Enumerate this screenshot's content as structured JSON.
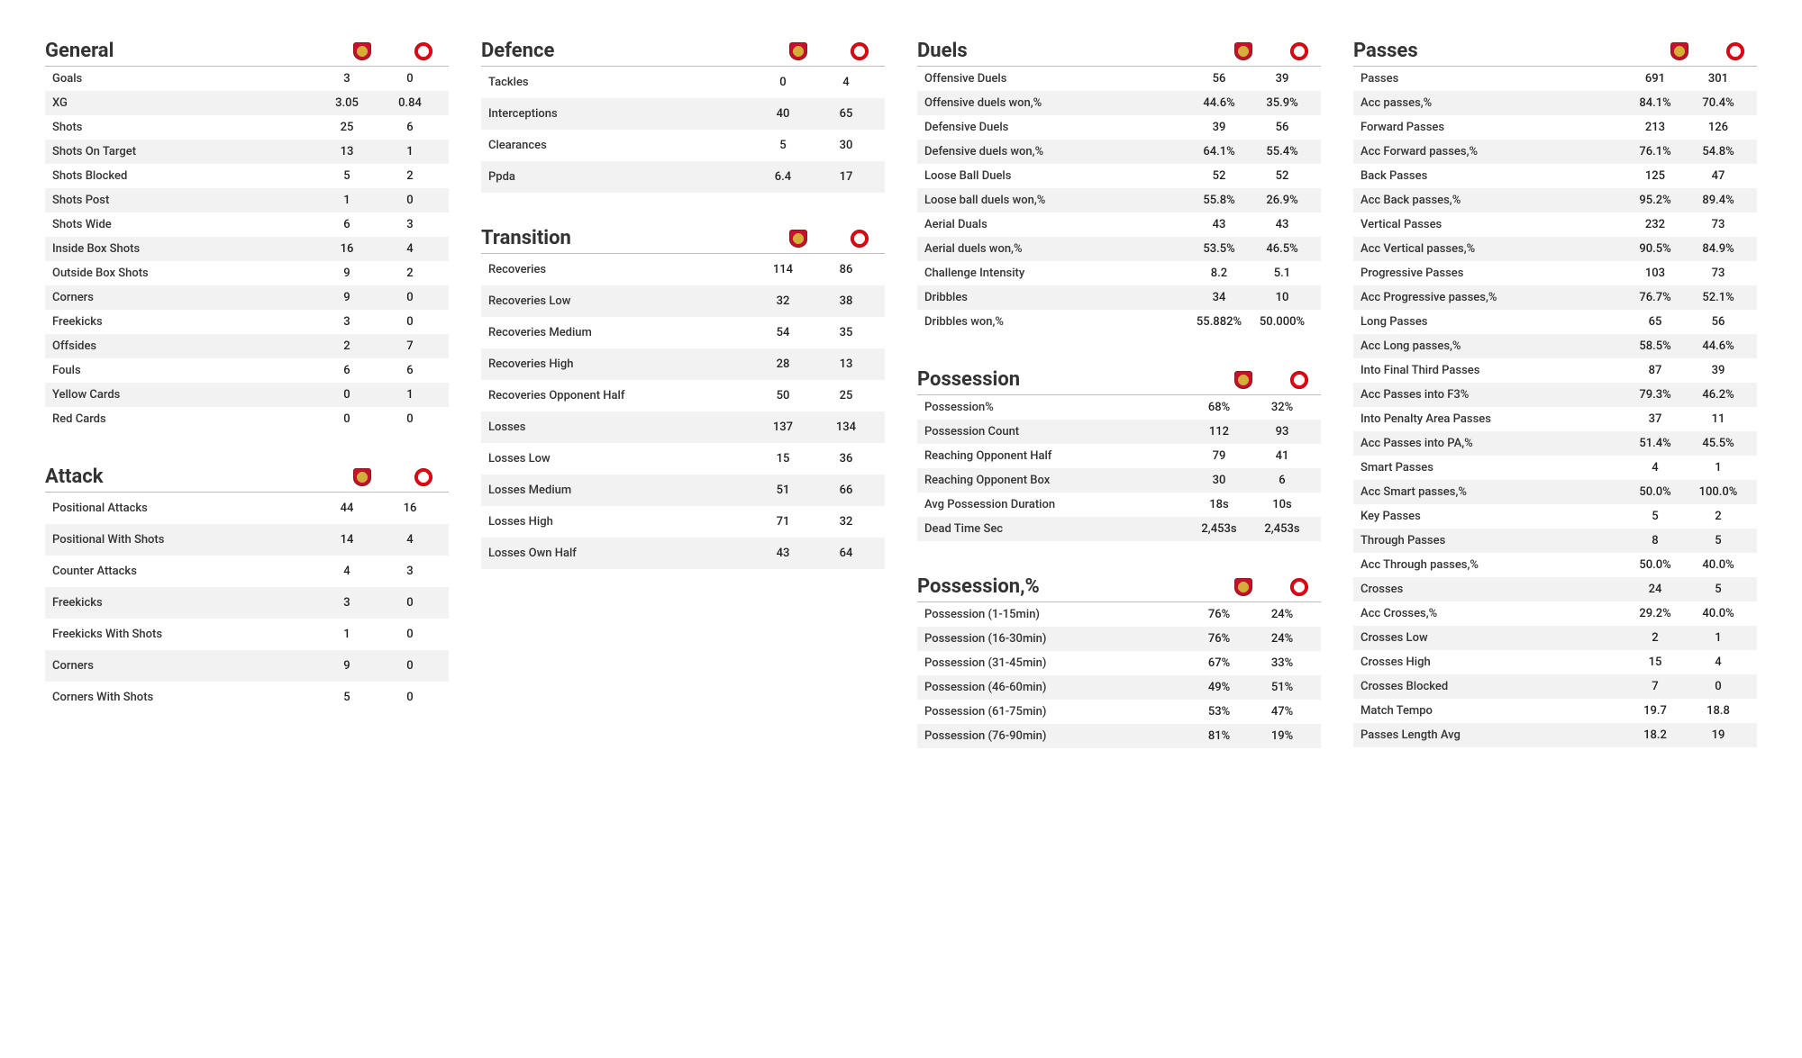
{
  "columns": [
    {
      "sections": [
        {
          "title": "General",
          "rows": [
            {
              "label": "Goals",
              "a": "3",
              "b": "0"
            },
            {
              "label": "XG",
              "a": "3.05",
              "b": "0.84"
            },
            {
              "label": "Shots",
              "a": "25",
              "b": "6"
            },
            {
              "label": "Shots On Target",
              "a": "13",
              "b": "1"
            },
            {
              "label": "Shots Blocked",
              "a": "5",
              "b": "2"
            },
            {
              "label": "Shots Post",
              "a": "1",
              "b": "0"
            },
            {
              "label": "Shots Wide",
              "a": "6",
              "b": "3"
            },
            {
              "label": "Inside Box Shots",
              "a": "16",
              "b": "4"
            },
            {
              "label": "Outside Box Shots",
              "a": "9",
              "b": "2"
            },
            {
              "label": "Corners",
              "a": "9",
              "b": "0"
            },
            {
              "label": "Freekicks",
              "a": "3",
              "b": "0"
            },
            {
              "label": "Offsides",
              "a": "2",
              "b": "7"
            },
            {
              "label": "Fouls",
              "a": "6",
              "b": "6"
            },
            {
              "label": "Yellow Cards",
              "a": "0",
              "b": "1"
            },
            {
              "label": "Red Cards",
              "a": "0",
              "b": "0"
            }
          ]
        },
        {
          "title": "Attack",
          "tall": true,
          "rows": [
            {
              "label": "Positional Attacks",
              "a": "44",
              "b": "16"
            },
            {
              "label": "Positional With Shots",
              "a": "14",
              "b": "4"
            },
            {
              "label": "Counter Attacks",
              "a": "4",
              "b": "3"
            },
            {
              "label": "Freekicks",
              "a": "3",
              "b": "0"
            },
            {
              "label": "Freekicks With Shots",
              "a": "1",
              "b": "0"
            },
            {
              "label": "Corners",
              "a": "9",
              "b": "0"
            },
            {
              "label": "Corners With Shots",
              "a": "5",
              "b": "0"
            }
          ]
        }
      ]
    },
    {
      "sections": [
        {
          "title": "Defence",
          "tall": true,
          "rows": [
            {
              "label": "Tackles",
              "a": "0",
              "b": "4"
            },
            {
              "label": "Interceptions",
              "a": "40",
              "b": "65"
            },
            {
              "label": "Clearances",
              "a": "5",
              "b": "30"
            },
            {
              "label": "Ppda",
              "a": "6.4",
              "b": "17"
            }
          ]
        },
        {
          "title": "Transition",
          "tall": true,
          "rows": [
            {
              "label": "Recoveries",
              "a": "114",
              "b": "86"
            },
            {
              "label": "Recoveries Low",
              "a": "32",
              "b": "38"
            },
            {
              "label": "Recoveries Medium",
              "a": "54",
              "b": "35"
            },
            {
              "label": "Recoveries High",
              "a": "28",
              "b": "13"
            },
            {
              "label": "Recoveries Opponent Half",
              "a": "50",
              "b": "25"
            },
            {
              "label": "Losses",
              "a": "137",
              "b": "134"
            },
            {
              "label": "Losses Low",
              "a": "15",
              "b": "36"
            },
            {
              "label": "Losses Medium",
              "a": "51",
              "b": "66"
            },
            {
              "label": "Losses High",
              "a": "71",
              "b": "32"
            },
            {
              "label": "Losses Own Half",
              "a": "43",
              "b": "64"
            }
          ]
        }
      ]
    },
    {
      "sections": [
        {
          "title": "Duels",
          "rows": [
            {
              "label": "Offensive Duels",
              "a": "56",
              "b": "39"
            },
            {
              "label": "Offensive duels won,%",
              "a": "44.6%",
              "b": "35.9%"
            },
            {
              "label": "Defensive Duels",
              "a": "39",
              "b": "56"
            },
            {
              "label": "Defensive duels won,%",
              "a": "64.1%",
              "b": "55.4%"
            },
            {
              "label": "Loose Ball Duels",
              "a": "52",
              "b": "52"
            },
            {
              "label": "Loose ball duels won,%",
              "a": "55.8%",
              "b": "26.9%"
            },
            {
              "label": "Aerial Duals",
              "a": "43",
              "b": "43"
            },
            {
              "label": "Aerial duels won,%",
              "a": "53.5%",
              "b": "46.5%"
            },
            {
              "label": "Challenge Intensity",
              "a": "8.2",
              "b": "5.1"
            },
            {
              "label": "Dribbles",
              "a": "34",
              "b": "10"
            },
            {
              "label": "Dribbles won,%",
              "a": "55.882%",
              "b": "50.000%"
            }
          ]
        },
        {
          "title": "Possession",
          "rows": [
            {
              "label": "Possession%",
              "a": "68%",
              "b": "32%"
            },
            {
              "label": "Possession Count",
              "a": "112",
              "b": "93"
            },
            {
              "label": "Reaching Opponent Half",
              "a": "79",
              "b": "41"
            },
            {
              "label": "Reaching Opponent Box",
              "a": "30",
              "b": "6"
            },
            {
              "label": "Avg Possession Duration",
              "a": "18s",
              "b": "10s"
            },
            {
              "label": "Dead Time Sec",
              "a": "2,453s",
              "b": "2,453s"
            }
          ]
        },
        {
          "title": "Possession,%",
          "rows": [
            {
              "label": "Possession (1-15min)",
              "a": "76%",
              "b": "24%"
            },
            {
              "label": "Possession (16-30min)",
              "a": "76%",
              "b": "24%"
            },
            {
              "label": "Possession (31-45min)",
              "a": "67%",
              "b": "33%"
            },
            {
              "label": "Possession (46-60min)",
              "a": "49%",
              "b": "51%"
            },
            {
              "label": "Possession (61-75min)",
              "a": "53%",
              "b": "47%"
            },
            {
              "label": "Possession (76-90min)",
              "a": "81%",
              "b": "19%"
            }
          ]
        }
      ]
    },
    {
      "sections": [
        {
          "title": "Passes",
          "rows": [
            {
              "label": "Passes",
              "a": "691",
              "b": "301"
            },
            {
              "label": "Acc passes,%",
              "a": "84.1%",
              "b": "70.4%"
            },
            {
              "label": "Forward Passes",
              "a": "213",
              "b": "126"
            },
            {
              "label": "Acc Forward passes,%",
              "a": "76.1%",
              "b": "54.8%"
            },
            {
              "label": "Back Passes",
              "a": "125",
              "b": "47"
            },
            {
              "label": "Acc Back passes,%",
              "a": "95.2%",
              "b": "89.4%"
            },
            {
              "label": "Vertical Passes",
              "a": "232",
              "b": "73"
            },
            {
              "label": "Acc Vertical passes,%",
              "a": "90.5%",
              "b": "84.9%"
            },
            {
              "label": "Progressive Passes",
              "a": "103",
              "b": "73"
            },
            {
              "label": "Acc Progressive passes,%",
              "a": "76.7%",
              "b": "52.1%"
            },
            {
              "label": "Long Passes",
              "a": "65",
              "b": "56"
            },
            {
              "label": "Acc Long passes,%",
              "a": "58.5%",
              "b": "44.6%"
            },
            {
              "label": "Into Final Third Passes",
              "a": "87",
              "b": "39"
            },
            {
              "label": "Acc Passes into F3%",
              "a": "79.3%",
              "b": "46.2%"
            },
            {
              "label": "Into Penalty Area Passes",
              "a": "37",
              "b": "11"
            },
            {
              "label": "Acc Passes into PA,%",
              "a": "51.4%",
              "b": "45.5%"
            },
            {
              "label": "Smart Passes",
              "a": "4",
              "b": "1"
            },
            {
              "label": "Acc Smart passes,%",
              "a": "50.0%",
              "b": "100.0%"
            },
            {
              "label": "Key Passes",
              "a": "5",
              "b": "2"
            },
            {
              "label": "Through Passes",
              "a": "8",
              "b": "5"
            },
            {
              "label": "Acc Through passes,%",
              "a": "50.0%",
              "b": "40.0%"
            },
            {
              "label": "Crosses",
              "a": "24",
              "b": "5"
            },
            {
              "label": "Acc Crosses,%",
              "a": "29.2%",
              "b": "40.0%"
            },
            {
              "label": "Crosses Low",
              "a": "2",
              "b": "1"
            },
            {
              "label": "Crosses High",
              "a": "15",
              "b": "4"
            },
            {
              "label": "Crosses Blocked",
              "a": "7",
              "b": "0"
            },
            {
              "label": "Match Tempo",
              "a": "19.7",
              "b": "18.8"
            },
            {
              "label": "Passes Length Avg",
              "a": "18.2",
              "b": "19"
            }
          ]
        }
      ]
    }
  ],
  "style": {
    "stripe_color": "#f2f2f2",
    "border_color": "#bdbdbd",
    "title_fontsize": 22,
    "row_fontsize": 13
  }
}
